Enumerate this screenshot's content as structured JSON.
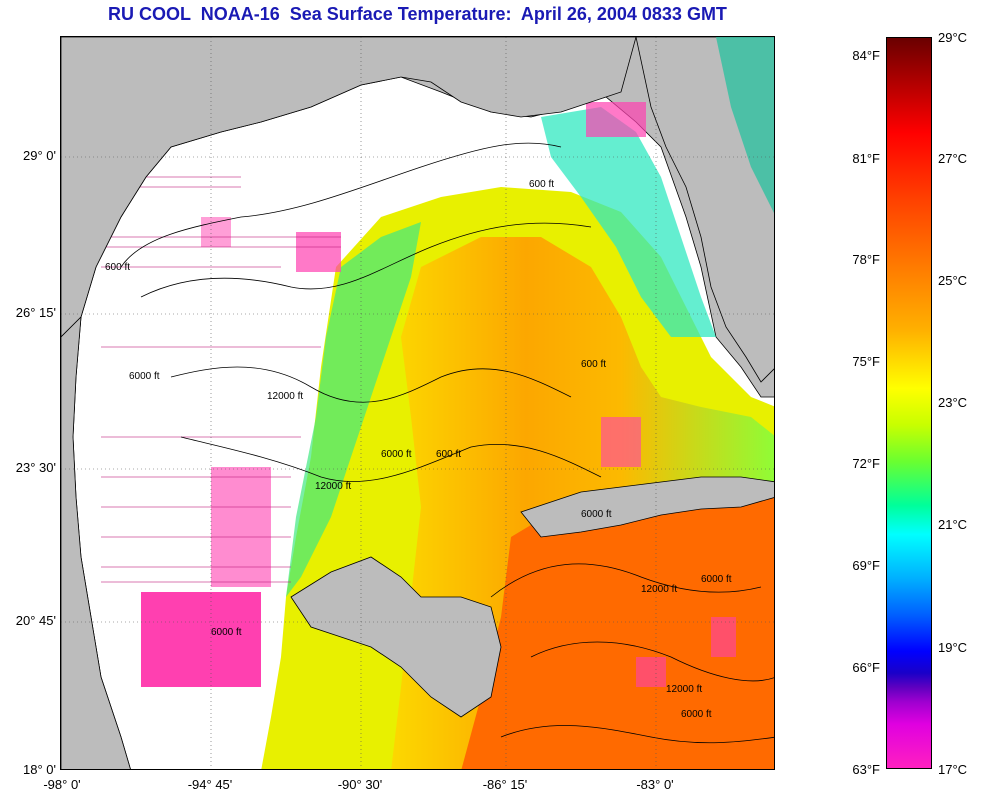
{
  "title": "RU COOL  NOAA-16  Sea Surface Temperature:  April 26, 2004 0833 GMT",
  "latitude_labels": [
    "29° 0'",
    "26° 15'",
    "23° 30'",
    "20° 45'",
    "18° 0'"
  ],
  "longitude_labels": [
    "-98° 0'",
    "-94° 45'",
    "-90° 30'",
    "-86° 15'",
    "-83° 0'"
  ],
  "colorbar": {
    "fahrenheit": [
      "84°F",
      "81°F",
      "78°F",
      "75°F",
      "72°F",
      "69°F",
      "66°F",
      "63°F"
    ],
    "celsius": [
      "29°C",
      "27°C",
      "25°C",
      "23°C",
      "21°C",
      "19°C",
      "17°C"
    ]
  },
  "contour_labels": [
    "600 ft",
    "600 ft",
    "6000 ft",
    "12000 ft",
    "12000 ft",
    "6000 ft",
    "600 ft",
    "12000 ft",
    "6000 ft",
    "6000 ft",
    "12000 ft",
    "6000 ft",
    "6000 ft",
    "600 ft"
  ],
  "colors": {
    "land": "#bcbcbc",
    "cloud_mask": "#ffffff",
    "title": "#1a1ab4",
    "bad_data": "#ff40b0"
  }
}
